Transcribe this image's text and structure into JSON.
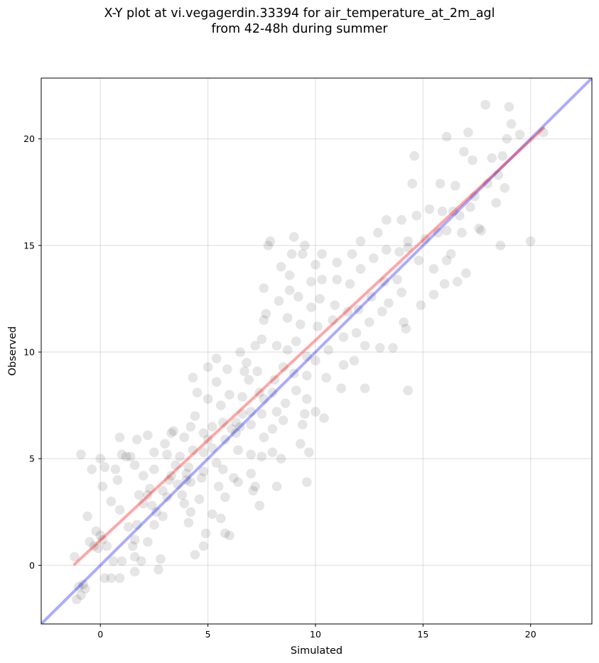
{
  "chart_data": {
    "type": "scatter",
    "title_line1": "X-Y plot at vi.vegagerdin.33394 for air_temperature_at_2m_agl",
    "title_line2": "from 42-48h during summer",
    "xlabel": "Simulated",
    "ylabel": "Observed",
    "xlim": [
      -2.75,
      22.85
    ],
    "ylim": [
      -2.75,
      22.85
    ],
    "xticks": [
      0,
      5,
      10,
      15,
      20
    ],
    "yticks": [
      0,
      5,
      10,
      15,
      20
    ],
    "grid": true,
    "point_color": "#000000",
    "point_alpha": 0.1,
    "identity_line": {
      "color": "#0000ff",
      "alpha": 0.33
    },
    "fit_line": {
      "color": "#ff0000",
      "alpha": 0.35,
      "x": [
        -1.2,
        20.6
      ],
      "y": [
        0.05,
        20.5
      ]
    },
    "series": [
      {
        "values": [
          [
            -1.1,
            -1.6
          ],
          [
            -0.9,
            -1.4
          ],
          [
            -1.0,
            -1.0
          ],
          [
            -0.7,
            -1.1
          ],
          [
            -0.8,
            -0.9
          ],
          [
            -1.2,
            0.4
          ],
          [
            -0.9,
            5.2
          ],
          [
            -0.6,
            2.3
          ],
          [
            -0.5,
            1.1
          ],
          [
            -0.3,
            0.9
          ],
          [
            -0.2,
            1.6
          ],
          [
            0.0,
            1.4
          ],
          [
            0.1,
            1.2
          ],
          [
            -0.1,
            0.8
          ],
          [
            0.2,
            4.6
          ],
          [
            0.0,
            5.0
          ],
          [
            0.1,
            3.7
          ],
          [
            -0.4,
            4.5
          ],
          [
            0.3,
            0.9
          ],
          [
            0.5,
            3.0
          ],
          [
            0.5,
            -0.6
          ],
          [
            0.2,
            -0.6
          ],
          [
            0.9,
            -0.6
          ],
          [
            0.6,
            0.2
          ],
          [
            1.0,
            0.2
          ],
          [
            0.7,
            4.5
          ],
          [
            0.8,
            4.0
          ],
          [
            1.0,
            5.2
          ],
          [
            0.9,
            6.0
          ],
          [
            1.2,
            5.1
          ],
          [
            1.4,
            5.1
          ],
          [
            0.9,
            2.6
          ],
          [
            1.3,
            1.8
          ],
          [
            1.6,
            0.4
          ],
          [
            1.6,
            1.2
          ],
          [
            1.5,
            0.9
          ],
          [
            1.6,
            -0.3
          ],
          [
            1.9,
            0.2
          ],
          [
            1.7,
            1.9
          ],
          [
            1.8,
            3.3
          ],
          [
            1.6,
            4.7
          ],
          [
            1.7,
            5.9
          ],
          [
            2.0,
            4.2
          ],
          [
            2.2,
            6.1
          ],
          [
            2.0,
            2.9
          ],
          [
            2.2,
            3.3
          ],
          [
            2.3,
            3.6
          ],
          [
            2.4,
            2.8
          ],
          [
            2.6,
            2.5
          ],
          [
            2.5,
            4.5
          ],
          [
            2.5,
            5.3
          ],
          [
            2.5,
            1.9
          ],
          [
            2.2,
            1.1
          ],
          [
            2.8,
            0.3
          ],
          [
            2.7,
            -0.2
          ],
          [
            2.9,
            2.3
          ],
          [
            3.1,
            3.2
          ],
          [
            2.9,
            3.5
          ],
          [
            3.2,
            4.0
          ],
          [
            3.3,
            4.2
          ],
          [
            3.1,
            5.2
          ],
          [
            3.0,
            5.7
          ],
          [
            3.3,
            6.2
          ],
          [
            3.4,
            6.3
          ],
          [
            3.6,
            3.8
          ],
          [
            3.5,
            4.7
          ],
          [
            3.7,
            5.1
          ],
          [
            3.8,
            3.3
          ],
          [
            3.9,
            2.9
          ],
          [
            4.0,
            4.0
          ],
          [
            4.0,
            4.3
          ],
          [
            4.1,
            4.6
          ],
          [
            4.2,
            3.9
          ],
          [
            4.3,
            5.4
          ],
          [
            4.2,
            6.5
          ],
          [
            3.9,
            6.0
          ],
          [
            4.4,
            7.0
          ],
          [
            4.5,
            8.1
          ],
          [
            4.3,
            8.8
          ],
          [
            4.1,
            2.0
          ],
          [
            4.2,
            2.5
          ],
          [
            4.4,
            0.5
          ],
          [
            4.8,
            0.9
          ],
          [
            4.9,
            1.5
          ],
          [
            4.6,
            3.1
          ],
          [
            4.7,
            4.1
          ],
          [
            4.8,
            4.4
          ],
          [
            4.8,
            5.3
          ],
          [
            4.8,
            6.2
          ],
          [
            5.0,
            5.9
          ],
          [
            5.0,
            7.8
          ],
          [
            5.0,
            9.3
          ],
          [
            5.2,
            6.5
          ],
          [
            5.2,
            5.5
          ],
          [
            5.2,
            2.4
          ],
          [
            5.4,
            4.8
          ],
          [
            5.5,
            3.7
          ],
          [
            5.6,
            2.2
          ],
          [
            5.8,
            1.5
          ],
          [
            6.0,
            1.4
          ],
          [
            5.8,
            3.2
          ],
          [
            5.7,
            4.5
          ],
          [
            5.8,
            5.9
          ],
          [
            5.7,
            6.7
          ],
          [
            5.6,
            7.5
          ],
          [
            5.4,
            8.6
          ],
          [
            5.4,
            9.7
          ],
          [
            5.9,
            9.2
          ],
          [
            6.0,
            8.0
          ],
          [
            6.1,
            6.4
          ],
          [
            6.3,
            6.2
          ],
          [
            6.3,
            6.7
          ],
          [
            6.2,
            4.1
          ],
          [
            6.4,
            3.9
          ],
          [
            6.4,
            5.4
          ],
          [
            6.5,
            6.5
          ],
          [
            6.6,
            7.1
          ],
          [
            6.6,
            7.9
          ],
          [
            6.7,
            9.1
          ],
          [
            6.8,
            9.5
          ],
          [
            6.5,
            10.0
          ],
          [
            6.9,
            8.7
          ],
          [
            7.0,
            7.2
          ],
          [
            7.0,
            6.6
          ],
          [
            7.0,
            5.2
          ],
          [
            7.0,
            4.3
          ],
          [
            7.1,
            3.5
          ],
          [
            7.2,
            3.7
          ],
          [
            7.4,
            2.8
          ],
          [
            7.5,
            5.1
          ],
          [
            7.6,
            6.0
          ],
          [
            7.5,
            7.1
          ],
          [
            7.6,
            7.8
          ],
          [
            7.4,
            8.1
          ],
          [
            7.3,
            9.1
          ],
          [
            7.2,
            10.3
          ],
          [
            7.5,
            10.6
          ],
          [
            7.6,
            11.5
          ],
          [
            7.7,
            11.8
          ],
          [
            7.6,
            13.0
          ],
          [
            7.8,
            15.0
          ],
          [
            7.9,
            15.2
          ],
          [
            8.0,
            5.3
          ],
          [
            8.0,
            6.4
          ],
          [
            8.0,
            8.1
          ],
          [
            8.1,
            8.7
          ],
          [
            8.2,
            7.2
          ],
          [
            8.2,
            10.3
          ],
          [
            8.3,
            12.4
          ],
          [
            8.4,
            14.0
          ],
          [
            8.2,
            3.7
          ],
          [
            8.4,
            5.0
          ],
          [
            8.5,
            9.3
          ],
          [
            8.5,
            6.8
          ],
          [
            8.6,
            7.6
          ],
          [
            8.7,
            10.1
          ],
          [
            8.7,
            11.6
          ],
          [
            8.8,
            12.9
          ],
          [
            8.8,
            13.6
          ],
          [
            8.9,
            14.6
          ],
          [
            9.0,
            15.4
          ],
          [
            9.1,
            8.2
          ],
          [
            9.0,
            9.0
          ],
          [
            9.1,
            10.5
          ],
          [
            9.3,
            11.3
          ],
          [
            9.2,
            12.6
          ],
          [
            9.4,
            14.6
          ],
          [
            9.5,
            15.0
          ],
          [
            9.3,
            5.7
          ],
          [
            9.4,
            6.6
          ],
          [
            9.5,
            7.1
          ],
          [
            9.6,
            7.8
          ],
          [
            9.6,
            8.9
          ],
          [
            9.6,
            9.8
          ],
          [
            9.8,
            12.1
          ],
          [
            9.8,
            13.3
          ],
          [
            10.0,
            14.1
          ],
          [
            9.7,
            5.3
          ],
          [
            9.6,
            3.9
          ],
          [
            10.0,
            7.2
          ],
          [
            10.0,
            9.6
          ],
          [
            10.1,
            11.2
          ],
          [
            10.2,
            12.5
          ],
          [
            10.3,
            13.4
          ],
          [
            10.3,
            14.6
          ],
          [
            10.4,
            6.9
          ],
          [
            10.5,
            8.8
          ],
          [
            10.6,
            10.1
          ],
          [
            10.8,
            11.5
          ],
          [
            10.9,
            12.2
          ],
          [
            11.0,
            13.4
          ],
          [
            11.0,
            14.2
          ],
          [
            11.2,
            8.3
          ],
          [
            11.3,
            9.4
          ],
          [
            11.3,
            10.7
          ],
          [
            11.5,
            11.9
          ],
          [
            11.6,
            13.2
          ],
          [
            11.7,
            14.6
          ],
          [
            11.8,
            9.6
          ],
          [
            11.9,
            10.9
          ],
          [
            12.0,
            12.0
          ],
          [
            12.1,
            13.9
          ],
          [
            12.1,
            15.2
          ],
          [
            12.3,
            8.3
          ],
          [
            12.3,
            10.3
          ],
          [
            12.5,
            11.4
          ],
          [
            12.6,
            12.6
          ],
          [
            12.7,
            14.4
          ],
          [
            12.9,
            15.6
          ],
          [
            13.0,
            10.2
          ],
          [
            13.1,
            11.9
          ],
          [
            13.2,
            13.3
          ],
          [
            13.3,
            14.8
          ],
          [
            13.3,
            16.2
          ],
          [
            13.4,
            12.3
          ],
          [
            13.6,
            10.2
          ],
          [
            13.8,
            13.4
          ],
          [
            13.9,
            14.7
          ],
          [
            14.0,
            16.2
          ],
          [
            14.0,
            12.8
          ],
          [
            14.1,
            11.4
          ],
          [
            14.2,
            11.1
          ],
          [
            14.3,
            8.2
          ],
          [
            14.3,
            14.9
          ],
          [
            14.5,
            17.9
          ],
          [
            14.6,
            19.2
          ],
          [
            14.7,
            16.4
          ],
          [
            14.8,
            14.3
          ],
          [
            14.9,
            12.2
          ],
          [
            15.1,
            15.3
          ],
          [
            15.3,
            16.7
          ],
          [
            15.5,
            13.9
          ],
          [
            15.5,
            12.7
          ],
          [
            15.7,
            15.6
          ],
          [
            15.8,
            17.9
          ],
          [
            15.9,
            16.6
          ],
          [
            16.0,
            13.2
          ],
          [
            16.1,
            14.3
          ],
          [
            16.1,
            15.7
          ],
          [
            16.1,
            20.1
          ],
          [
            16.3,
            14.6
          ],
          [
            16.4,
            16.6
          ],
          [
            16.5,
            17.8
          ],
          [
            16.6,
            13.3
          ],
          [
            16.7,
            16.4
          ],
          [
            16.8,
            15.6
          ],
          [
            16.9,
            19.4
          ],
          [
            17.0,
            13.7
          ],
          [
            17.1,
            20.3
          ],
          [
            17.2,
            16.8
          ],
          [
            17.4,
            17.3
          ],
          [
            17.6,
            15.8
          ],
          [
            17.7,
            15.7
          ],
          [
            17.9,
            21.6
          ],
          [
            18.2,
            19.1
          ],
          [
            18.4,
            17.0
          ],
          [
            18.5,
            18.3
          ],
          [
            18.6,
            15.0
          ],
          [
            18.7,
            19.2
          ],
          [
            18.8,
            17.7
          ],
          [
            18.9,
            20.0
          ],
          [
            19.0,
            21.5
          ],
          [
            19.1,
            20.7
          ],
          [
            19.5,
            20.2
          ],
          [
            20.0,
            15.2
          ],
          [
            20.6,
            20.3
          ],
          [
            17.3,
            19.0
          ],
          [
            18.0,
            17.9
          ],
          [
            14.3,
            15.2
          ]
        ]
      }
    ]
  }
}
